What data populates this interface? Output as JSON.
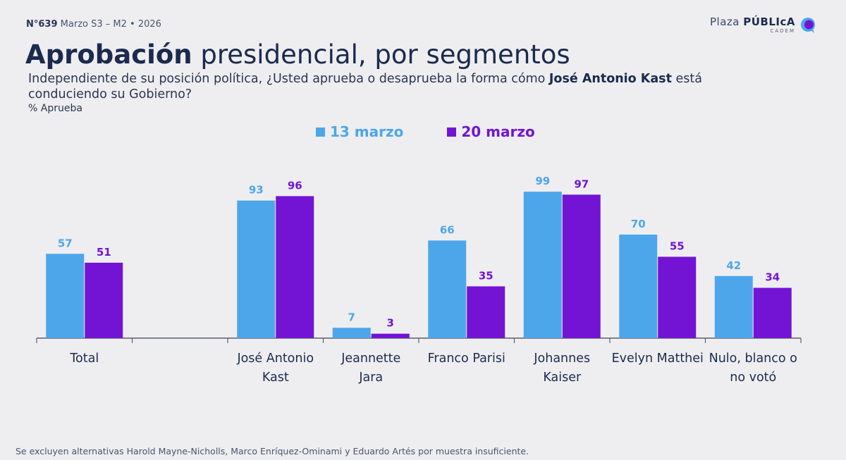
{
  "header": {
    "issue": "N°639",
    "period": "Marzo S3 – M2 • 2026"
  },
  "brand": {
    "plaza": "Plaza",
    "publica": "PÚBLIcA",
    "cadem": "CADEM"
  },
  "title": {
    "bold": "Aprobación",
    "rest": " presidencial, por segmentos"
  },
  "question": {
    "part1": "Independiente de su posición política, ¿Usted aprueba o desaprueba la forma cómo ",
    "name": "José Antonio Kast",
    "part2": " está conduciendo su Gobierno?"
  },
  "metric": "% Aprueba",
  "colors": {
    "series1": "#4ea6ea",
    "series2": "#7314d4",
    "axis": "#5a5f70",
    "text": "#1b2a4e"
  },
  "chart_data": {
    "type": "bar",
    "title": "Aprobación presidencial, por segmentos",
    "ylabel": "% Aprueba",
    "ylim": [
      0,
      100
    ],
    "grid": false,
    "legend_position": "top-center",
    "categories": [
      [
        "Total"
      ],
      [
        ""
      ],
      [
        "José Antonio",
        "Kast"
      ],
      [
        "Jeannette",
        "Jara"
      ],
      [
        "Franco Parisi"
      ],
      [
        "Johannes",
        "Kaiser"
      ],
      [
        "Evelyn Matthei"
      ],
      [
        "Nulo, blanco o",
        "no votó"
      ]
    ],
    "series": [
      {
        "name": "13 marzo",
        "values": [
          57,
          null,
          93,
          7,
          66,
          99,
          70,
          42
        ]
      },
      {
        "name": "20 marzo",
        "values": [
          51,
          null,
          96,
          3,
          35,
          97,
          55,
          34
        ]
      }
    ]
  },
  "footnote": "Se excluyen alternativas Harold Mayne-Nicholls, Marco Enríquez-Ominami y Eduardo Artés por muestra insuficiente."
}
